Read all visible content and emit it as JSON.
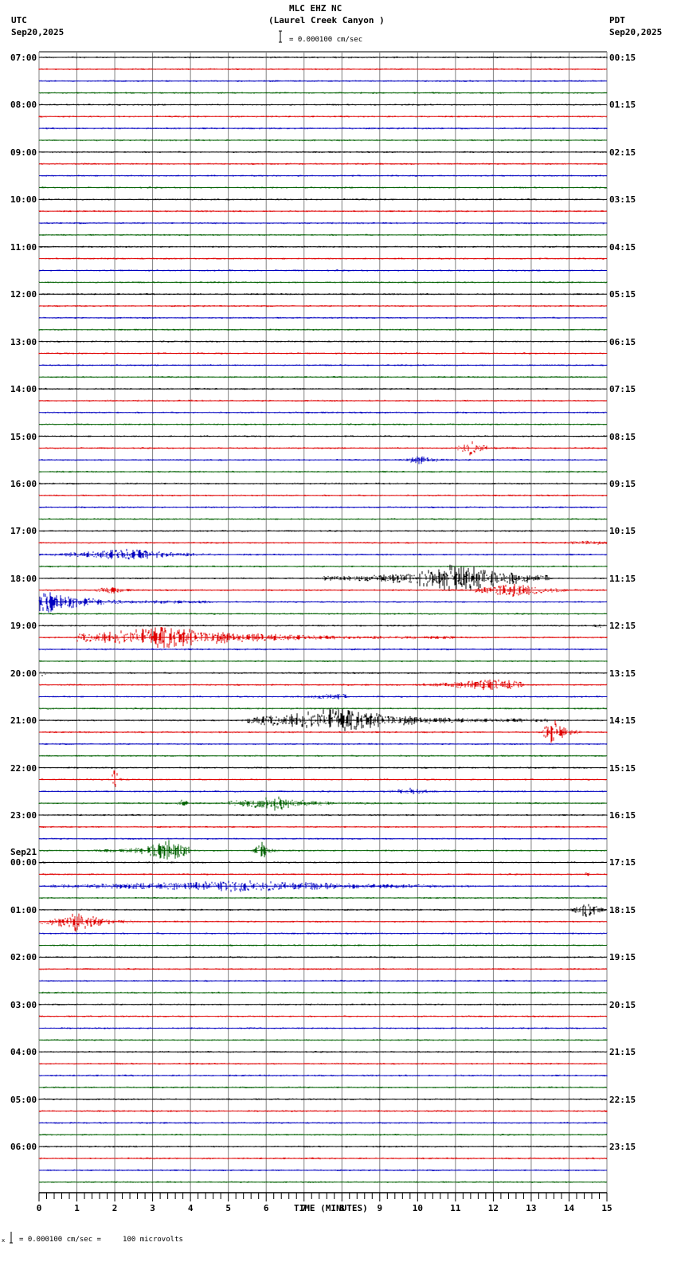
{
  "header": {
    "station": "MLC EHZ NC",
    "location": "(Laurel Creek Canyon )",
    "scale": "= 0.000100 cm/sec",
    "left_tz": "UTC",
    "left_date": "Sep20,2025",
    "right_tz": "PDT",
    "right_date": "Sep20,2025"
  },
  "footer": {
    "scale_note": "= 0.000100 cm/sec =     100 microvolts",
    "prefix": "x"
  },
  "colors": {
    "trace": [
      "#000000",
      "#e00000",
      "#0000c0",
      "#006000"
    ],
    "grid": "#808080"
  },
  "chart_data": {
    "type": "line",
    "title": "MLC EHZ NC (Laurel Creek Canyon )",
    "subtitle": "= 0.000100 cm/sec",
    "xlabel": "TIME (MINUTES)",
    "ylabel": "",
    "xlim": [
      0,
      15
    ],
    "x_ticks": [
      "0",
      "1",
      "2",
      "3",
      "4",
      "5",
      "6",
      "7",
      "8",
      "9",
      "10",
      "11",
      "12",
      "13",
      "14",
      "15"
    ],
    "grid": true,
    "traces_per_hour": 4,
    "trace_minutes": 15,
    "left_labels": [
      {
        "row": 0,
        "text": "07:00"
      },
      {
        "row": 4,
        "text": "08:00"
      },
      {
        "row": 8,
        "text": "09:00"
      },
      {
        "row": 12,
        "text": "10:00"
      },
      {
        "row": 16,
        "text": "11:00"
      },
      {
        "row": 20,
        "text": "12:00"
      },
      {
        "row": 24,
        "text": "13:00"
      },
      {
        "row": 28,
        "text": "14:00"
      },
      {
        "row": 32,
        "text": "15:00"
      },
      {
        "row": 36,
        "text": "16:00"
      },
      {
        "row": 40,
        "text": "17:00"
      },
      {
        "row": 44,
        "text": "18:00"
      },
      {
        "row": 48,
        "text": "19:00"
      },
      {
        "row": 52,
        "text": "20:00"
      },
      {
        "row": 56,
        "text": "21:00"
      },
      {
        "row": 60,
        "text": "22:00"
      },
      {
        "row": 64,
        "text": "23:00"
      },
      {
        "row": 68,
        "text": "Sep21\n00:00"
      },
      {
        "row": 72,
        "text": "01:00"
      },
      {
        "row": 76,
        "text": "02:00"
      },
      {
        "row": 80,
        "text": "03:00"
      },
      {
        "row": 84,
        "text": "04:00"
      },
      {
        "row": 88,
        "text": "05:00"
      },
      {
        "row": 92,
        "text": "06:00"
      }
    ],
    "right_labels": [
      "00:15",
      "01:15",
      "02:15",
      "03:15",
      "04:15",
      "05:15",
      "06:15",
      "07:15",
      "08:15",
      "09:15",
      "10:15",
      "11:15",
      "12:15",
      "13:15",
      "14:15",
      "15:15",
      "16:15",
      "17:15",
      "18:15",
      "19:15",
      "20:15",
      "21:15",
      "22:15",
      "23:15"
    ],
    "events": [
      {
        "row": 33,
        "start": 11.0,
        "end": 12.6,
        "amp": 10,
        "peak": 11.4
      },
      {
        "row": 34,
        "start": 8.8,
        "end": 10.8,
        "amp": 6,
        "peak": 10.1
      },
      {
        "row": 41,
        "start": 12.8,
        "end": 15,
        "amp": 4,
        "peak": 14.5
      },
      {
        "row": 42,
        "start": 0.0,
        "end": 5.5,
        "amp": 8,
        "peak": 2.3
      },
      {
        "row": 44,
        "start": 7.5,
        "end": 13.5,
        "amp": 20,
        "peak": 11.1
      },
      {
        "row": 45,
        "start": 11.5,
        "end": 15,
        "amp": 10,
        "peak": 12.5
      },
      {
        "row": 45,
        "start": 1.5,
        "end": 3.3,
        "amp": 5,
        "peak": 1.9
      },
      {
        "row": 46,
        "start": 0.0,
        "end": 4.5,
        "amp": 14,
        "peak": 0.2
      },
      {
        "row": 48,
        "start": 14.2,
        "end": 15,
        "amp": 3,
        "peak": 14.8
      },
      {
        "row": 49,
        "start": 1.0,
        "end": 11,
        "amp": 14,
        "peak": 3.3
      },
      {
        "row": 52,
        "start": 0.0,
        "end": 0.3,
        "amp": 5,
        "peak": 0.1
      },
      {
        "row": 53,
        "start": 7.5,
        "end": 12.8,
        "amp": 8,
        "peak": 12.0
      },
      {
        "row": 54,
        "start": 3.8,
        "end": 8.2,
        "amp": 4,
        "peak": 7.8
      },
      {
        "row": 56,
        "start": 5.5,
        "end": 13.5,
        "amp": 16,
        "peak": 7.8
      },
      {
        "row": 57,
        "start": 13.3,
        "end": 14.3,
        "amp": 18,
        "peak": 13.6
      },
      {
        "row": 61,
        "start": 1.9,
        "end": 2.2,
        "amp": 20,
        "peak": 2.0
      },
      {
        "row": 62,
        "start": 9.0,
        "end": 11.2,
        "amp": 5,
        "peak": 9.8
      },
      {
        "row": 63,
        "start": 3.5,
        "end": 4.0,
        "amp": 7,
        "peak": 3.8
      },
      {
        "row": 63,
        "start": 5.0,
        "end": 9.0,
        "amp": 10,
        "peak": 6.2
      },
      {
        "row": 67,
        "start": 1.5,
        "end": 4.0,
        "amp": 14,
        "peak": 3.4
      },
      {
        "row": 67,
        "start": 5.6,
        "end": 6.3,
        "amp": 12,
        "peak": 5.9
      },
      {
        "row": 69,
        "start": 14.0,
        "end": 15,
        "amp": 3,
        "peak": 14.5
      },
      {
        "row": 70,
        "start": 0.3,
        "end": 15,
        "amp": 8,
        "peak": 5.3
      },
      {
        "row": 72,
        "start": 14.0,
        "end": 15,
        "amp": 14,
        "peak": 14.5
      },
      {
        "row": 73,
        "start": 0.0,
        "end": 2.5,
        "amp": 14,
        "peak": 1.0
      }
    ]
  }
}
